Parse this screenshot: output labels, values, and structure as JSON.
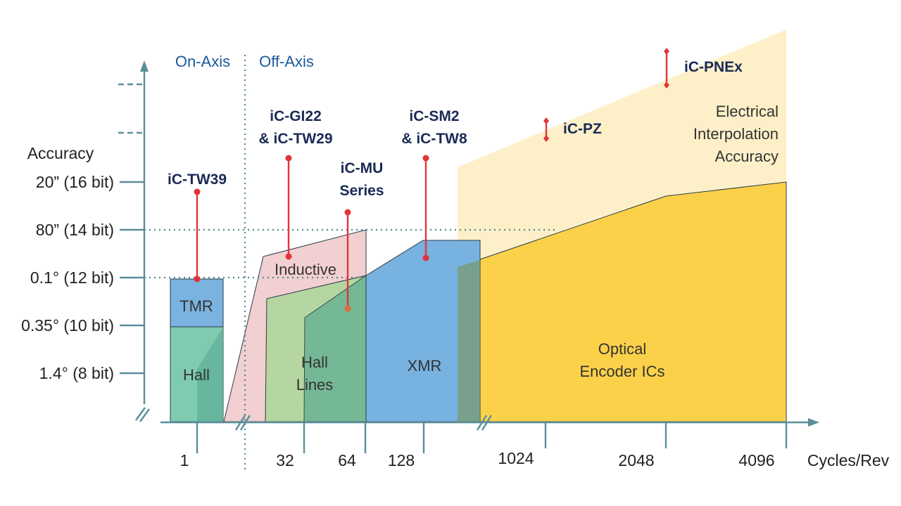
{
  "axes": {
    "y_title": "Accuracy",
    "x_title": "Cycles/Rev",
    "y_ticks": [
      "20” (16 bit)",
      "80” (14 bit)",
      "0.1° (12 bit)",
      "0.35° (10 bit)",
      "1.4° (8 bit)"
    ],
    "x_ticks": [
      "1",
      "32",
      "64",
      "128",
      "1024",
      "2048",
      "4096"
    ]
  },
  "sections": {
    "on_axis": "On-Axis",
    "off_axis": "Off-Axis"
  },
  "regions": {
    "tmr": "TMR",
    "hall": "Hall",
    "inductive": "Inductive",
    "hall_lines_1": "Hall",
    "hall_lines_2": "Lines",
    "xmr": "XMR",
    "optical_1": "Optical",
    "optical_2": "Encoder ICs",
    "interp_1": "Electrical",
    "interp_2": "Interpolation",
    "interp_3": "Accuracy"
  },
  "products": {
    "tw39": "iC-TW39",
    "gi22_1": "iC-GI22",
    "gi22_2": "& iC-TW29",
    "mu_1": "iC-MU",
    "mu_2": "Series",
    "sm2_1": "iC-SM2",
    "sm2_2": "& iC-TW8",
    "pz": "iC-PZ",
    "pnex": "iC-PNEx"
  },
  "colors": {
    "axis": "#5a8e9a",
    "title_blue": "#1c5a9a",
    "product_navy": "#1a2a55",
    "marker_red": "#e3343a",
    "hall_green": "#7fcbb0",
    "tmr_blue": "#7ab3e0",
    "inductive_pink": "#f2cfd0",
    "hall_lines_green": "#b5d6a0",
    "xmr_blue": "#78b2e0",
    "optical_yellow": "#fcd14a",
    "interp_cream": "#fdf0c8"
  }
}
